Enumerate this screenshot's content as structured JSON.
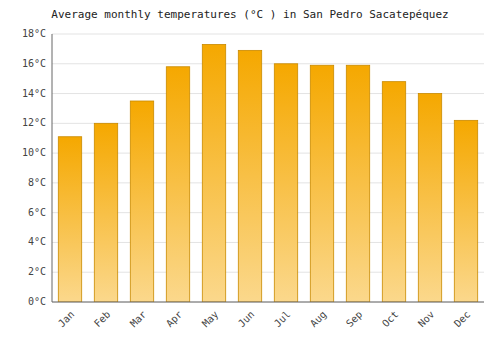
{
  "chart_data": {
    "type": "bar",
    "title": "Average monthly temperatures (°C ) in San Pedro Sacatepéquez",
    "categories": [
      "Jan",
      "Feb",
      "Mar",
      "Apr",
      "May",
      "Jun",
      "Jul",
      "Aug",
      "Sep",
      "Oct",
      "Nov",
      "Dec"
    ],
    "values": [
      11.1,
      12.0,
      13.5,
      15.8,
      17.3,
      16.9,
      16.0,
      15.9,
      15.9,
      14.8,
      14.0,
      12.2
    ],
    "color": "#F5A800",
    "ylim": [
      0,
      18
    ],
    "yticks": [
      {
        "value": 0,
        "label": "0°C"
      },
      {
        "value": 2,
        "label": "2°C"
      },
      {
        "value": 4,
        "label": "4°C"
      },
      {
        "value": 6,
        "label": "6°C"
      },
      {
        "value": 8,
        "label": "8°C"
      },
      {
        "value": 10,
        "label": "10°C"
      },
      {
        "value": 12,
        "label": "12°C"
      },
      {
        "value": 14,
        "label": "14°C"
      },
      {
        "value": 16,
        "label": "16°C"
      },
      {
        "value": 18,
        "label": "18°C"
      }
    ],
    "grid": true
  }
}
